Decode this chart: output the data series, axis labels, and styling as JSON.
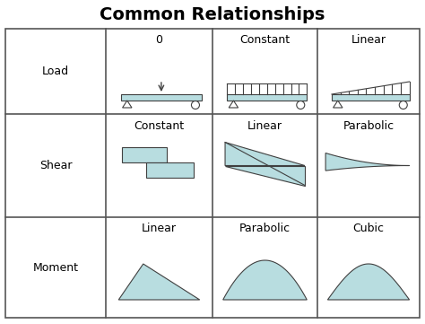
{
  "title": "Common Relationships",
  "title_fontsize": 14,
  "title_fontweight": "bold",
  "bg_color": "#ffffff",
  "fill_color": "#b8dde0",
  "edge_color": "#404040",
  "grid_color": "#555555",
  "row_labels": [
    "Load",
    "Shear",
    "Moment"
  ],
  "col_headers_row1": [
    "0",
    "Constant",
    "Linear"
  ],
  "col_headers_row2": [
    "Constant",
    "Linear",
    "Parabolic"
  ],
  "col_headers_row3": [
    "Linear",
    "Parabolic",
    "Cubic"
  ],
  "label_fontsize": 9,
  "header_fontsize": 9,
  "fig_w": 4.74,
  "fig_h": 3.61,
  "dpi": 100,
  "grid_lw": 1.2
}
